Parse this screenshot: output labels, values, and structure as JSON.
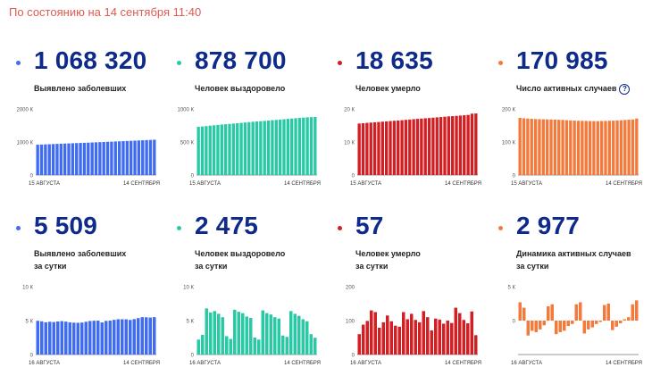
{
  "header": {
    "status_text": "По состоянию на 14 сентября 11:40"
  },
  "colors": {
    "blue": "#3f6cf0",
    "teal": "#29c9a5",
    "red": "#d11f24",
    "orange": "#f47a3c",
    "number": "#0e2a8a",
    "header": "#e05a4f"
  },
  "cards": [
    {
      "id": "cumulative-cases",
      "value": "1 068 320",
      "label_lines": [
        "Выявлено заболевших"
      ],
      "color_key": "blue",
      "help_icon": false
    },
    {
      "id": "cumulative-recovered",
      "value": "878 700",
      "label_lines": [
        "Человек выздоровело"
      ],
      "color_key": "teal",
      "help_icon": false
    },
    {
      "id": "cumulative-deaths",
      "value": "18 635",
      "label_lines": [
        "Человек умерло"
      ],
      "color_key": "red",
      "help_icon": false
    },
    {
      "id": "active-cases",
      "value": "170 985",
      "label_lines": [
        "Число активных случаев"
      ],
      "color_key": "orange",
      "help_icon": true,
      "help_icon_glyph": "?"
    },
    {
      "id": "daily-cases",
      "value": "5 509",
      "label_lines": [
        "Выявлено заболевших",
        "за сутки"
      ],
      "color_key": "blue",
      "help_icon": false
    },
    {
      "id": "daily-recovered",
      "value": "2 475",
      "label_lines": [
        "Человек выздоровело",
        "за сутки"
      ],
      "color_key": "teal",
      "help_icon": false
    },
    {
      "id": "daily-deaths",
      "value": "57",
      "label_lines": [
        "Человек умерло",
        "за сутки"
      ],
      "color_key": "red",
      "help_icon": false
    },
    {
      "id": "daily-active-change",
      "value": "2 977",
      "label_lines": [
        "Динамика активных случаев",
        "за сутки"
      ],
      "color_key": "orange",
      "help_icon": false
    }
  ],
  "chart_data": [
    {
      "type": "bar",
      "card": "cumulative-cases",
      "x_start_label": "15 АВГУСТА",
      "x_end_label": "14 СЕНТЯБРЯ",
      "y_ticks": [
        {
          "value": 0,
          "label": "0"
        },
        {
          "value": 1000000,
          "label": "1000 К"
        },
        {
          "value": 2000000,
          "label": "2000 К"
        }
      ],
      "ylim": [
        0,
        2000000
      ],
      "values": [
        917884,
        922853,
        927745,
        932493,
        937321,
        942106,
        946976,
        951897,
        956749,
        961493,
        966189,
        970865,
        975576,
        980405,
        985346,
        990326,
        995319,
        1000048,
        1005000,
        1009995,
        1015105,
        1020310,
        1025505,
        1030690,
        1035789,
        1041007,
        1046370,
        1051874,
        1057362,
        1062811,
        1068320
      ]
    },
    {
      "type": "bar",
      "card": "cumulative-recovered",
      "x_start_label": "15 АВГУСТА",
      "x_end_label": "14 СЕНТЯБРЯ",
      "y_ticks": [
        {
          "value": 0,
          "label": "0"
        },
        {
          "value": 500000,
          "label": "500 К"
        },
        {
          "value": 1000000,
          "label": "1000 К"
        }
      ],
      "ylim": [
        0,
        1000000
      ],
      "values": [
        729411,
        735000,
        741000,
        747000,
        753000,
        759000,
        764500,
        769000,
        773500,
        778500,
        784000,
        789500,
        795000,
        800500,
        806000,
        810500,
        815000,
        819500,
        824500,
        829500,
        834500,
        839500,
        844500,
        849500,
        854500,
        859500,
        864500,
        869000,
        873000,
        876200,
        878700
      ]
    },
    {
      "type": "bar",
      "card": "cumulative-deaths",
      "x_start_label": "15 АВГУСТА",
      "x_end_label": "14 СЕНТЯБРЯ",
      "y_ticks": [
        {
          "value": 0,
          "label": "0"
        },
        {
          "value": 10000,
          "label": "10 К"
        },
        {
          "value": 20000,
          "label": "20 К"
        }
      ],
      "ylim": [
        0,
        20000
      ],
      "values": [
        15585,
        15685,
        15784,
        15872,
        15951,
        16050,
        16148,
        16246,
        16341,
        16425,
        16507,
        16593,
        16703,
        16807,
        16909,
        17003,
        17093,
        17182,
        17253,
        17359,
        17462,
        17553,
        17653,
        17745,
        17828,
        17906,
        17999,
        18091,
        18193,
        18578,
        18635
      ]
    },
    {
      "type": "bar",
      "card": "active-cases",
      "x_start_label": "15 АВГУСТА",
      "x_end_label": "14 СЕНТЯБРЯ",
      "y_ticks": [
        {
          "value": 0,
          "label": "0"
        },
        {
          "value": 100000,
          "label": "100 К"
        },
        {
          "value": 200000,
          "label": "200 К"
        }
      ],
      "ylim": [
        0,
        200000
      ],
      "values": [
        172888,
        171800,
        171000,
        170200,
        169500,
        169000,
        168800,
        168500,
        168300,
        167800,
        167300,
        166700,
        166000,
        165300,
        164700,
        164300,
        164000,
        163800,
        163500,
        163200,
        163200,
        163600,
        163800,
        164200,
        164600,
        165200,
        165900,
        166500,
        167500,
        168200,
        170985
      ]
    },
    {
      "type": "bar",
      "card": "daily-cases",
      "x_start_label": "16 АВГУСТА",
      "x_end_label": "14 СЕНТЯБРЯ",
      "y_ticks": [
        {
          "value": 0,
          "label": "0"
        },
        {
          "value": 5000,
          "label": "5 К"
        },
        {
          "value": 10000,
          "label": "10 К"
        }
      ],
      "ylim": [
        0,
        10000
      ],
      "values": [
        4969,
        4892,
        4748,
        4828,
        4785,
        4870,
        4921,
        4852,
        4744,
        4696,
        4676,
        4711,
        4829,
        4941,
        4980,
        4993,
        4729,
        4952,
        4995,
        5110,
        5205,
        5195,
        5185,
        5099,
        5218,
        5363,
        5504,
        5488,
        5449,
        5509
      ]
    },
    {
      "type": "bar",
      "card": "daily-recovered",
      "x_start_label": "16 АВГУСТА",
      "x_end_label": "14 СЕНТЯБРЯ",
      "y_ticks": [
        {
          "value": 0,
          "label": "0"
        },
        {
          "value": 5000,
          "label": "5 К"
        },
        {
          "value": 10000,
          "label": "10 К"
        }
      ],
      "ylim": [
        0,
        10000
      ],
      "values": [
        2200,
        2900,
        6800,
        6200,
        6400,
        6000,
        5500,
        2700,
        2300,
        6600,
        6300,
        6100,
        5600,
        5400,
        2500,
        2200,
        6500,
        6100,
        5900,
        5500,
        5300,
        2800,
        2600,
        6400,
        6000,
        5700,
        5200,
        4900,
        3000,
        2475
      ]
    },
    {
      "type": "bar",
      "card": "daily-deaths",
      "x_start_label": "16 АВГУСТА",
      "x_end_label": "14 СЕНТЯБРЯ",
      "y_ticks": [
        {
          "value": 0,
          "label": "0"
        },
        {
          "value": 100,
          "label": "100"
        },
        {
          "value": 200,
          "label": "200"
        }
      ],
      "ylim": [
        0,
        200
      ],
      "values": [
        60,
        88,
        99,
        130,
        125,
        79,
        95,
        115,
        98,
        85,
        82,
        125,
        104,
        120,
        102,
        95,
        128,
        110,
        71,
        106,
        103,
        91,
        100,
        93,
        138,
        122,
        102,
        92,
        127,
        57
      ]
    },
    {
      "type": "bar",
      "card": "daily-active-change",
      "x_start_label": "16 АВГУСТА",
      "x_end_label": "14 СЕНТЯБРЯ",
      "y_ticks": [
        {
          "value": 0,
          "label": "0"
        },
        {
          "value": 5000,
          "label": "5 К"
        }
      ],
      "ylim": [
        -5000,
        5000
      ],
      "values": [
        2700,
        1900,
        -2200,
        -1500,
        -1700,
        -1300,
        -700,
        2100,
        2400,
        -2000,
        -1700,
        -1500,
        -800,
        -500,
        2400,
        2700,
        -1900,
        -1300,
        -1000,
        -500,
        -200,
        2300,
        2500,
        -1400,
        -900,
        -400,
        200,
        500,
        2400,
        2977
      ]
    }
  ]
}
